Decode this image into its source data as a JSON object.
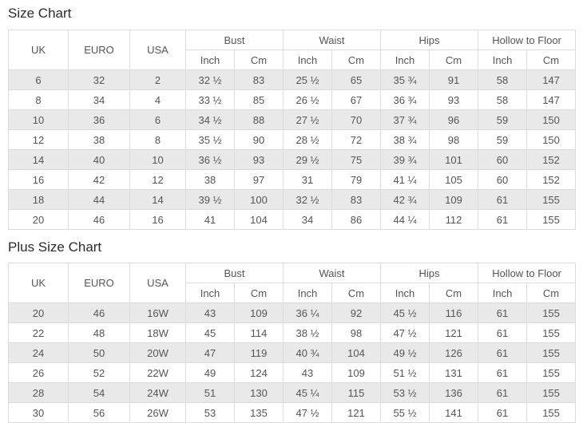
{
  "colors": {
    "stripe_row_bg": "#e9e9e9",
    "table_border": "#dcdcdc",
    "cell_text": "#555555",
    "title_text": "#2b2b2b",
    "page_bg": "#ffffff"
  },
  "tables": [
    {
      "title": "Size Chart",
      "base_headers": [
        "UK",
        "EURO",
        "USA"
      ],
      "column_groups": [
        "Bust",
        "Waist",
        "Hips",
        "Hollow to Floor"
      ],
      "sub_headers": [
        "Inch",
        "Cm"
      ],
      "rows": [
        [
          "6",
          "32",
          "2",
          "32 ½",
          "83",
          "25 ½",
          "65",
          "35 ¾",
          "91",
          "58",
          "147"
        ],
        [
          "8",
          "34",
          "4",
          "33 ½",
          "85",
          "26 ½",
          "67",
          "36 ¾",
          "93",
          "58",
          "147"
        ],
        [
          "10",
          "36",
          "6",
          "34 ½",
          "88",
          "27 ½",
          "70",
          "37 ¾",
          "96",
          "59",
          "150"
        ],
        [
          "12",
          "38",
          "8",
          "35 ½",
          "90",
          "28 ½",
          "72",
          "38 ¾",
          "98",
          "59",
          "150"
        ],
        [
          "14",
          "40",
          "10",
          "36 ½",
          "93",
          "29 ½",
          "75",
          "39 ¾",
          "101",
          "60",
          "152"
        ],
        [
          "16",
          "42",
          "12",
          "38",
          "97",
          "31",
          "79",
          "41 ¼",
          "105",
          "60",
          "152"
        ],
        [
          "18",
          "44",
          "14",
          "39 ½",
          "100",
          "32 ½",
          "83",
          "42 ¾",
          "109",
          "61",
          "155"
        ],
        [
          "20",
          "46",
          "16",
          "41",
          "104",
          "34",
          "86",
          "44 ¼",
          "112",
          "61",
          "155"
        ]
      ]
    },
    {
      "title": "Plus Size Chart",
      "base_headers": [
        "UK",
        "EURO",
        "USA"
      ],
      "column_groups": [
        "Bust",
        "Waist",
        "Hips",
        "Hollow to Floor"
      ],
      "sub_headers": [
        "Inch",
        "Cm"
      ],
      "rows": [
        [
          "20",
          "46",
          "16W",
          "43",
          "109",
          "36 ¼",
          "92",
          "45 ½",
          "116",
          "61",
          "155"
        ],
        [
          "22",
          "48",
          "18W",
          "45",
          "114",
          "38 ½",
          "98",
          "47 ½",
          "121",
          "61",
          "155"
        ],
        [
          "24",
          "50",
          "20W",
          "47",
          "119",
          "40 ¾",
          "104",
          "49 ½",
          "126",
          "61",
          "155"
        ],
        [
          "26",
          "52",
          "22W",
          "49",
          "124",
          "43",
          "109",
          "51 ½",
          "131",
          "61",
          "155"
        ],
        [
          "28",
          "54",
          "24W",
          "51",
          "130",
          "45 ¼",
          "115",
          "53 ½",
          "136",
          "61",
          "155"
        ],
        [
          "30",
          "56",
          "26W",
          "53",
          "135",
          "47 ½",
          "121",
          "55 ½",
          "141",
          "61",
          "155"
        ]
      ]
    }
  ]
}
